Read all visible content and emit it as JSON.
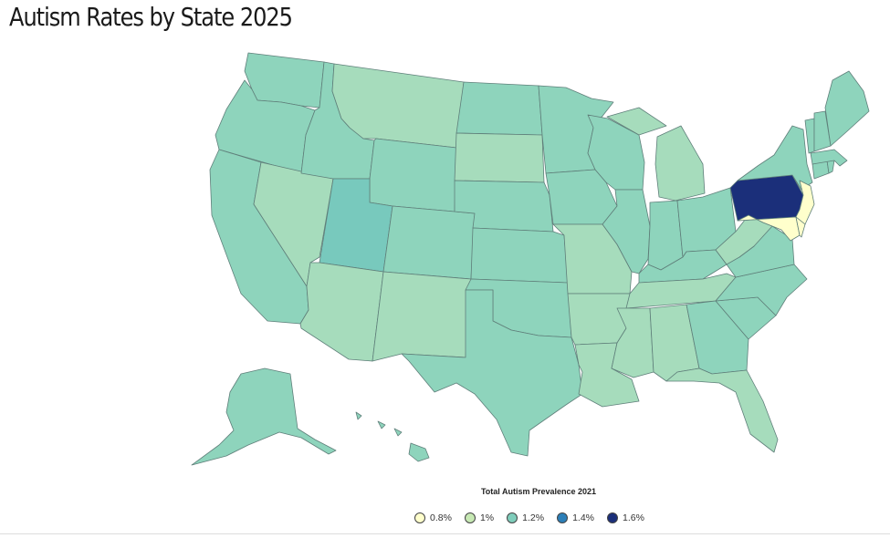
{
  "title": "Autism Rates by State 2025",
  "legend": {
    "title": "Total Autism Prevalence 2021",
    "items": [
      {
        "label": "0.8%",
        "color": "#ffffcc"
      },
      {
        "label": "1%",
        "color": "#c7e9b4"
      },
      {
        "label": "1.2%",
        "color": "#7fcdbb"
      },
      {
        "label": "1.4%",
        "color": "#2c7fb8"
      },
      {
        "label": "1.6%",
        "color": "#1b2f7a"
      }
    ]
  },
  "map_colors": {
    "light_green": "#a6dcbc",
    "teal": "#8ed4bc",
    "mid_teal": "#78c9bd",
    "pale_yellow": "#ffffcc",
    "navy": "#1b2f7a"
  },
  "states": [
    {
      "id": "WA",
      "value": "teal"
    },
    {
      "id": "OR",
      "value": "teal"
    },
    {
      "id": "CA",
      "value": "teal"
    },
    {
      "id": "NV",
      "value": "light_green"
    },
    {
      "id": "ID",
      "value": "teal"
    },
    {
      "id": "MT",
      "value": "light_green"
    },
    {
      "id": "WY",
      "value": "teal"
    },
    {
      "id": "UT",
      "value": "mid_teal"
    },
    {
      "id": "AZ",
      "value": "light_green"
    },
    {
      "id": "CO",
      "value": "teal"
    },
    {
      "id": "NM",
      "value": "light_green"
    },
    {
      "id": "ND",
      "value": "teal"
    },
    {
      "id": "SD",
      "value": "light_green"
    },
    {
      "id": "NE",
      "value": "teal"
    },
    {
      "id": "KS",
      "value": "teal"
    },
    {
      "id": "OK",
      "value": "teal"
    },
    {
      "id": "TX",
      "value": "teal"
    },
    {
      "id": "MN",
      "value": "teal"
    },
    {
      "id": "IA",
      "value": "teal"
    },
    {
      "id": "MO",
      "value": "light_green"
    },
    {
      "id": "AR",
      "value": "light_green"
    },
    {
      "id": "LA",
      "value": "light_green"
    },
    {
      "id": "WI",
      "value": "teal"
    },
    {
      "id": "IL",
      "value": "teal"
    },
    {
      "id": "MI",
      "value": "light_green"
    },
    {
      "id": "IN",
      "value": "teal"
    },
    {
      "id": "OH",
      "value": "teal"
    },
    {
      "id": "KY",
      "value": "teal"
    },
    {
      "id": "TN",
      "value": "light_green"
    },
    {
      "id": "MS",
      "value": "light_green"
    },
    {
      "id": "AL",
      "value": "light_green"
    },
    {
      "id": "GA",
      "value": "teal"
    },
    {
      "id": "FL",
      "value": "light_green"
    },
    {
      "id": "SC",
      "value": "teal"
    },
    {
      "id": "NC",
      "value": "teal"
    },
    {
      "id": "VA",
      "value": "teal"
    },
    {
      "id": "WV",
      "value": "light_green"
    },
    {
      "id": "PA",
      "value": "navy"
    },
    {
      "id": "NY",
      "value": "teal"
    },
    {
      "id": "NJ",
      "value": "pale_yellow"
    },
    {
      "id": "MD",
      "value": "pale_yellow"
    },
    {
      "id": "DE",
      "value": "pale_yellow"
    },
    {
      "id": "CT",
      "value": "teal"
    },
    {
      "id": "RI",
      "value": "teal"
    },
    {
      "id": "MA",
      "value": "teal"
    },
    {
      "id": "VT",
      "value": "teal"
    },
    {
      "id": "NH",
      "value": "teal"
    },
    {
      "id": "ME",
      "value": "teal"
    },
    {
      "id": "AK",
      "value": "teal"
    },
    {
      "id": "HI",
      "value": "teal"
    }
  ]
}
